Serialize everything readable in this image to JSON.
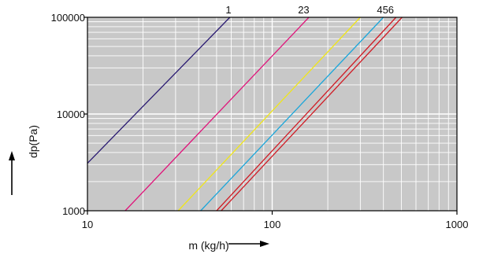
{
  "chart_data": {
    "type": "line",
    "x_scale": "log",
    "y_scale": "log",
    "xlim": [
      10,
      1000
    ],
    "ylim": [
      1000,
      100000
    ],
    "x_ticks": [
      10,
      100,
      1000
    ],
    "x_tick_labels": [
      "10",
      "100",
      "1000"
    ],
    "y_ticks": [
      1000,
      10000,
      100000
    ],
    "y_tick_labels": [
      "1000",
      "10000",
      "100000"
    ],
    "xlabel": "m (kg/h)",
    "ylabel": "dp(Pa)",
    "grid": true,
    "background_color": "#c8c8c8",
    "grid_color": "#ffffff",
    "curve_labels": [
      {
        "text": "1",
        "anchor_x": 58
      },
      {
        "text": "23",
        "anchor_x": 148
      },
      {
        "text": "456",
        "anchor_x": 410
      }
    ],
    "series": [
      {
        "color": "#2a1a72",
        "points": [
          [
            10,
            3100
          ],
          [
            59,
            100000
          ]
        ]
      },
      {
        "color": "#e0147a",
        "points": [
          [
            16,
            1000
          ],
          [
            158,
            100000
          ]
        ]
      },
      {
        "color": "#f0e619",
        "points": [
          [
            31,
            1000
          ],
          [
            300,
            100000
          ]
        ]
      },
      {
        "color": "#1aa6da",
        "points": [
          [
            41,
            1000
          ],
          [
            400,
            100000
          ]
        ]
      },
      {
        "color": "#d01b24",
        "points": [
          [
            50,
            1000
          ],
          [
            468,
            100000
          ]
        ]
      },
      {
        "color": "#d01b24",
        "points": [
          [
            53,
            1000
          ],
          [
            505,
            100000
          ]
        ]
      }
    ]
  }
}
